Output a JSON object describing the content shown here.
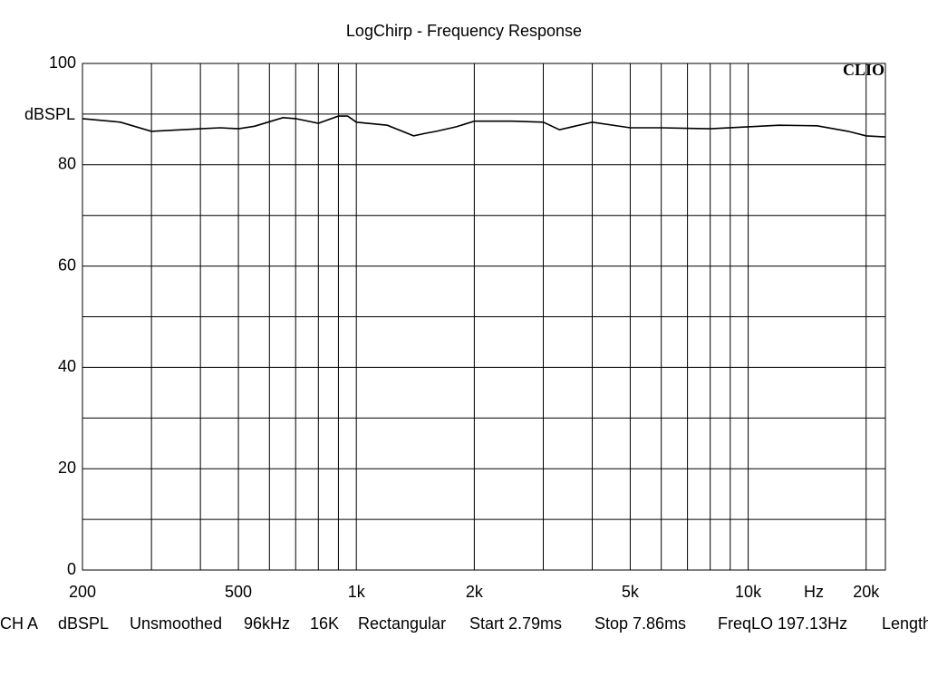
{
  "chart_data": {
    "type": "line",
    "title": "LogChirp - Frequency Response",
    "ylabel": "dBSPL",
    "xlabel": "Hz",
    "brand": "CLIO",
    "log_x": true,
    "grid": true,
    "xlim": [
      200,
      22400
    ],
    "ylim": [
      0,
      100
    ],
    "xticks": [
      200,
      500,
      {
        "value": 1000,
        "label": "1k"
      },
      {
        "value": 2000,
        "label": "2k"
      },
      {
        "value": 5000,
        "label": "5k"
      },
      {
        "value": 10000,
        "label": "10k"
      },
      {
        "value": 20000,
        "label": "20k"
      }
    ],
    "xgrid": [
      300,
      400,
      600,
      700,
      800,
      900,
      3000,
      4000,
      6000,
      7000,
      8000,
      9000
    ],
    "yticks": [
      0,
      20,
      40,
      60,
      80,
      100
    ],
    "ygrid": [
      10,
      30,
      50,
      70,
      90
    ],
    "series": [
      {
        "color": "#000000",
        "x": [
          200,
          250,
          300,
          400,
          450,
          500,
          550,
          600,
          650,
          700,
          800,
          900,
          950,
          1000,
          1200,
          1400,
          1500,
          1600,
          1800,
          2000,
          2500,
          3000,
          3300,
          4000,
          5000,
          6000,
          8000,
          10000,
          12000,
          15000,
          18000,
          20000,
          22400
        ],
        "values": [
          89.1,
          88.4,
          86.6,
          87.1,
          87.3,
          87.1,
          87.6,
          88.5,
          89.3,
          89.1,
          88.2,
          89.6,
          89.6,
          88.4,
          87.8,
          85.7,
          86.2,
          86.6,
          87.5,
          88.6,
          88.6,
          88.4,
          86.9,
          88.4,
          87.3,
          87.3,
          87.1,
          87.5,
          87.8,
          87.7,
          86.6,
          85.7,
          85.5
        ]
      }
    ],
    "footer": [
      "CH A",
      "dBSPL",
      "Unsmoothed",
      "96kHz",
      "16K",
      "Rectangular",
      "Start 2.79ms",
      "Stop 7.86ms",
      "FreqLO 197.13Hz",
      "Length"
    ]
  }
}
